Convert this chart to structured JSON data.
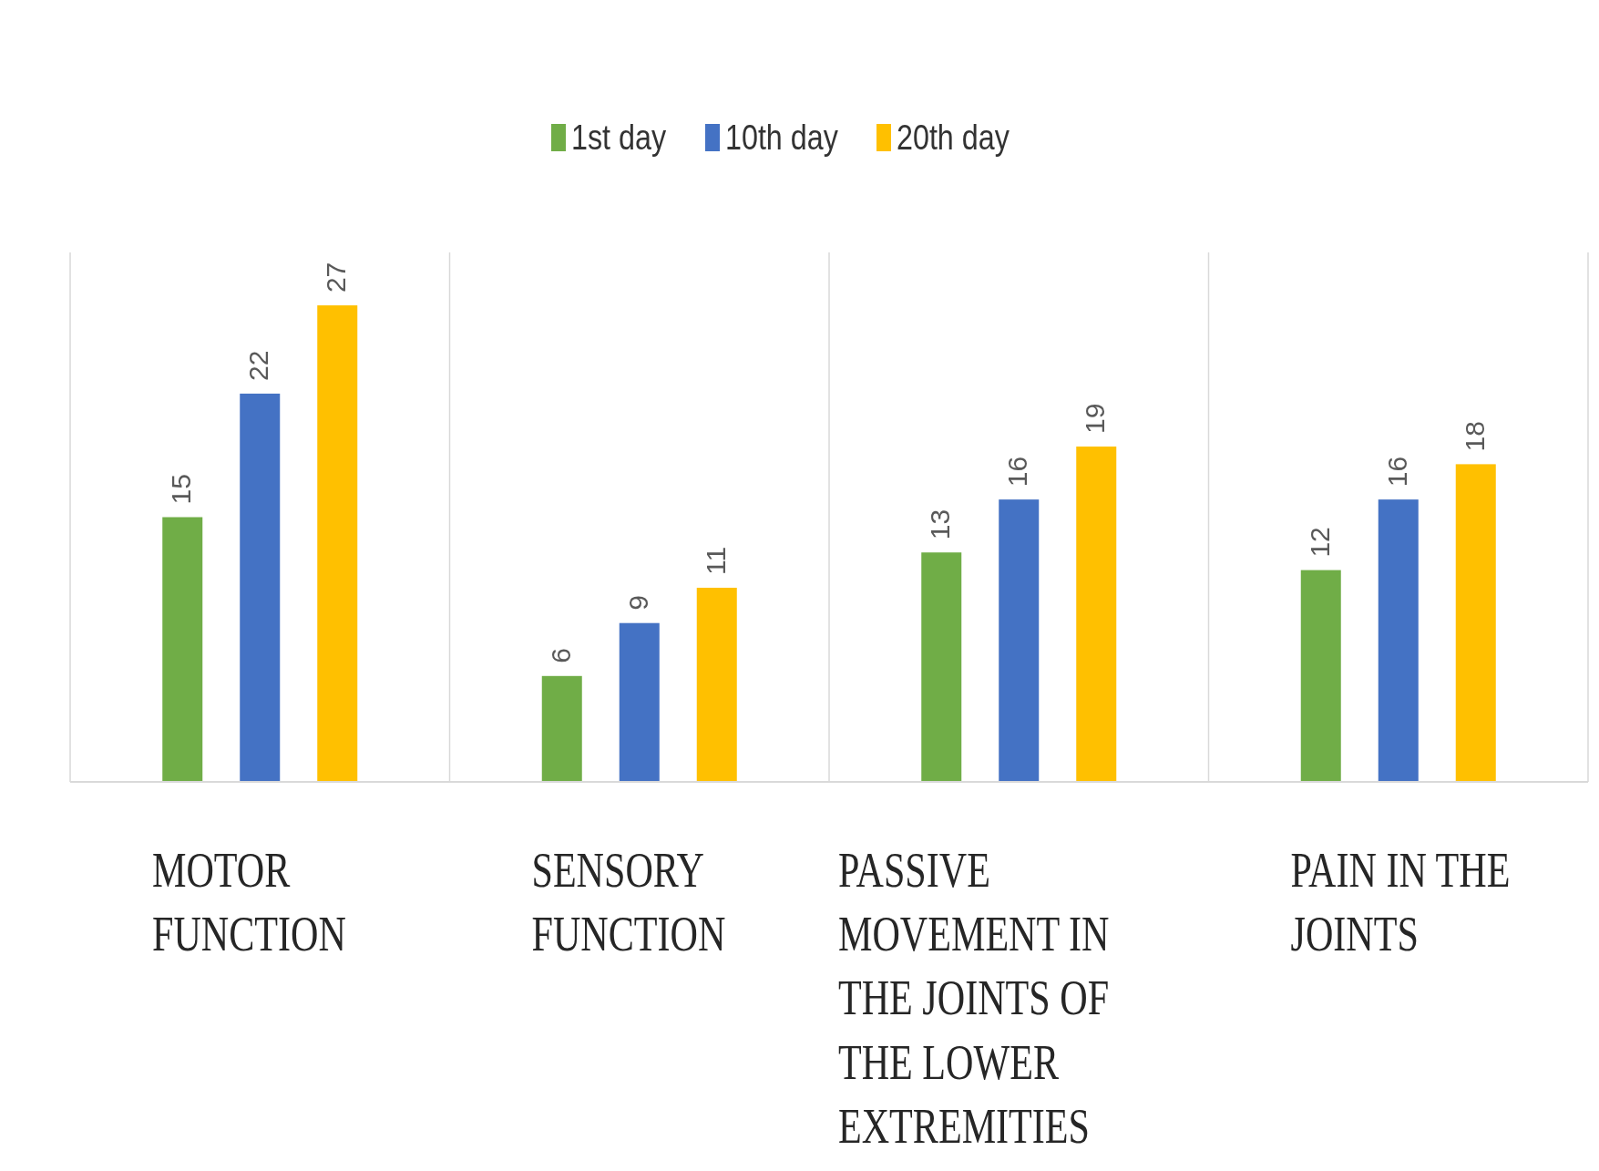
{
  "chart_data": {
    "type": "bar",
    "categories": [
      "MOTOR FUNCTION",
      "SENSORY FUNCTION",
      "PASSIVE MOVEMENT IN THE JOINTS OF THE LOWER EXTREMITIES",
      "PAIN IN THE JOINTS"
    ],
    "series": [
      {
        "name": "1st day",
        "color": "#70ad47",
        "values": [
          15,
          6,
          13,
          12
        ]
      },
      {
        "name": "10th day",
        "color": "#4472c4",
        "values": [
          22,
          9,
          16,
          16
        ]
      },
      {
        "name": "20th day",
        "color": "#ffc000",
        "values": [
          27,
          11,
          19,
          18
        ]
      }
    ],
    "ylim": [
      0,
      30
    ],
    "data_labels": true,
    "grid": "x",
    "legend": "top",
    "tick_labels": "x"
  }
}
